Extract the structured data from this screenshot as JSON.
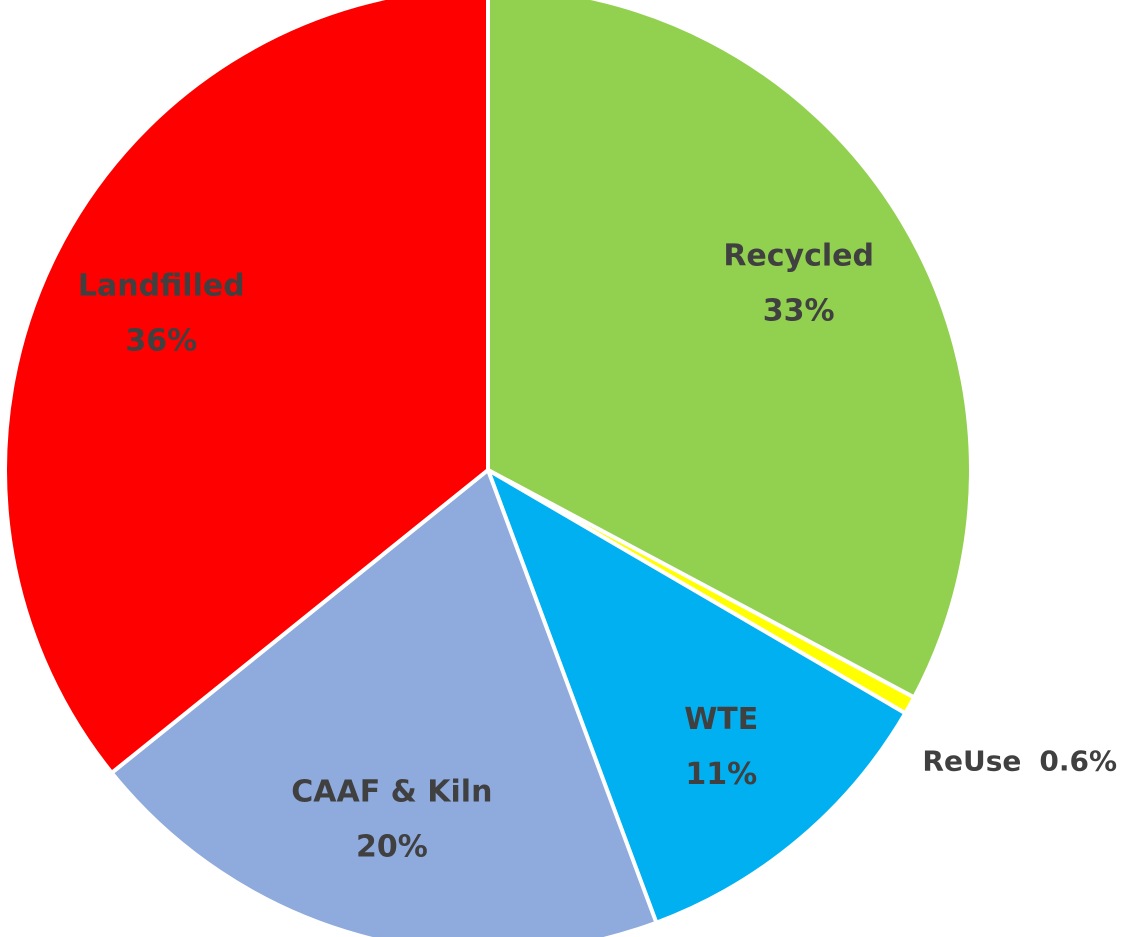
{
  "chart_data": {
    "type": "pie",
    "categories": [
      "Recycled",
      "ReUse",
      "WTE",
      "CAAF & Kiln",
      "Landfilled"
    ],
    "values": [
      33,
      0.6,
      11,
      20,
      36
    ],
    "value_labels": [
      "33%",
      "0.6%",
      "11%",
      "20%",
      "36%"
    ],
    "colors": [
      "#92d050",
      "#ffff00",
      "#00b0f0",
      "#8faadc",
      "#ff0000"
    ]
  }
}
